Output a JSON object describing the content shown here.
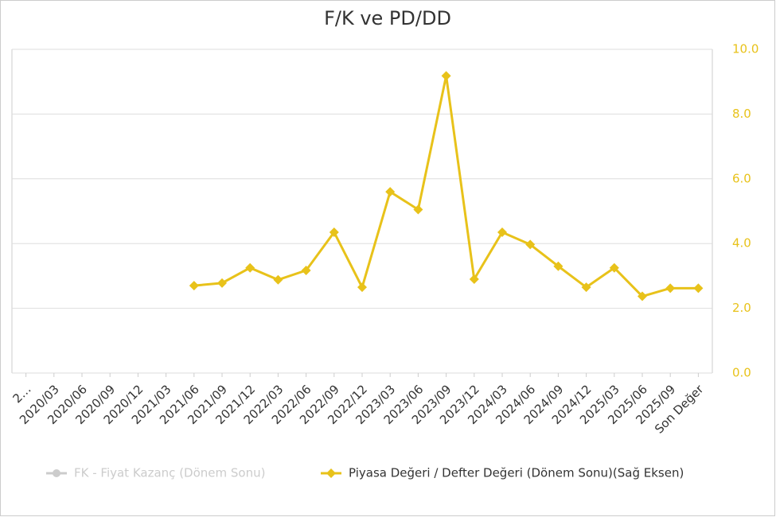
{
  "chart_data": {
    "type": "line",
    "title": "F/K ve PD/DD",
    "categories": [
      "2…",
      "2020/03",
      "2020/06",
      "2020/09",
      "2020/12",
      "2021/03",
      "2021/06",
      "2021/09",
      "2021/12",
      "2022/03",
      "2022/06",
      "2022/09",
      "2022/12",
      "2023/03",
      "2023/06",
      "2023/09",
      "2023/12",
      "2024/03",
      "2024/06",
      "2024/09",
      "2024/12",
      "2025/03",
      "2025/06",
      "2025/09",
      "Son Değer"
    ],
    "series": [
      {
        "name": "FK - Fiyat Kazanç (Dönem Sonu)",
        "color": "#cccccc",
        "visible": false,
        "values": [
          null,
          null,
          null,
          null,
          null,
          null,
          null,
          null,
          null,
          null,
          null,
          null,
          null,
          null,
          null,
          null,
          null,
          null,
          null,
          null,
          null,
          null,
          null,
          null,
          null
        ]
      },
      {
        "name": "Piyasa Değeri / Defter Değeri (Dönem Sonu)(Sağ Eksen)",
        "color": "#e8c21a",
        "axis": "y2",
        "visible": true,
        "values": [
          null,
          null,
          null,
          null,
          null,
          null,
          2.7,
          2.78,
          3.25,
          2.88,
          3.17,
          4.35,
          2.65,
          5.6,
          5.05,
          9.18,
          2.9,
          4.35,
          3.97,
          3.3,
          2.65,
          3.25,
          2.37,
          2.62,
          2.62
        ]
      }
    ],
    "y2lim": [
      0,
      10
    ],
    "y2ticks": [
      {
        "value": 0,
        "label": "0.0"
      },
      {
        "value": 2,
        "label": "2.0"
      },
      {
        "value": 4,
        "label": "4.0"
      },
      {
        "value": 6,
        "label": "6.0"
      },
      {
        "value": 8,
        "label": "8.0"
      },
      {
        "value": 10,
        "label": "10.0"
      }
    ],
    "grid": true,
    "legend": "bottom"
  }
}
